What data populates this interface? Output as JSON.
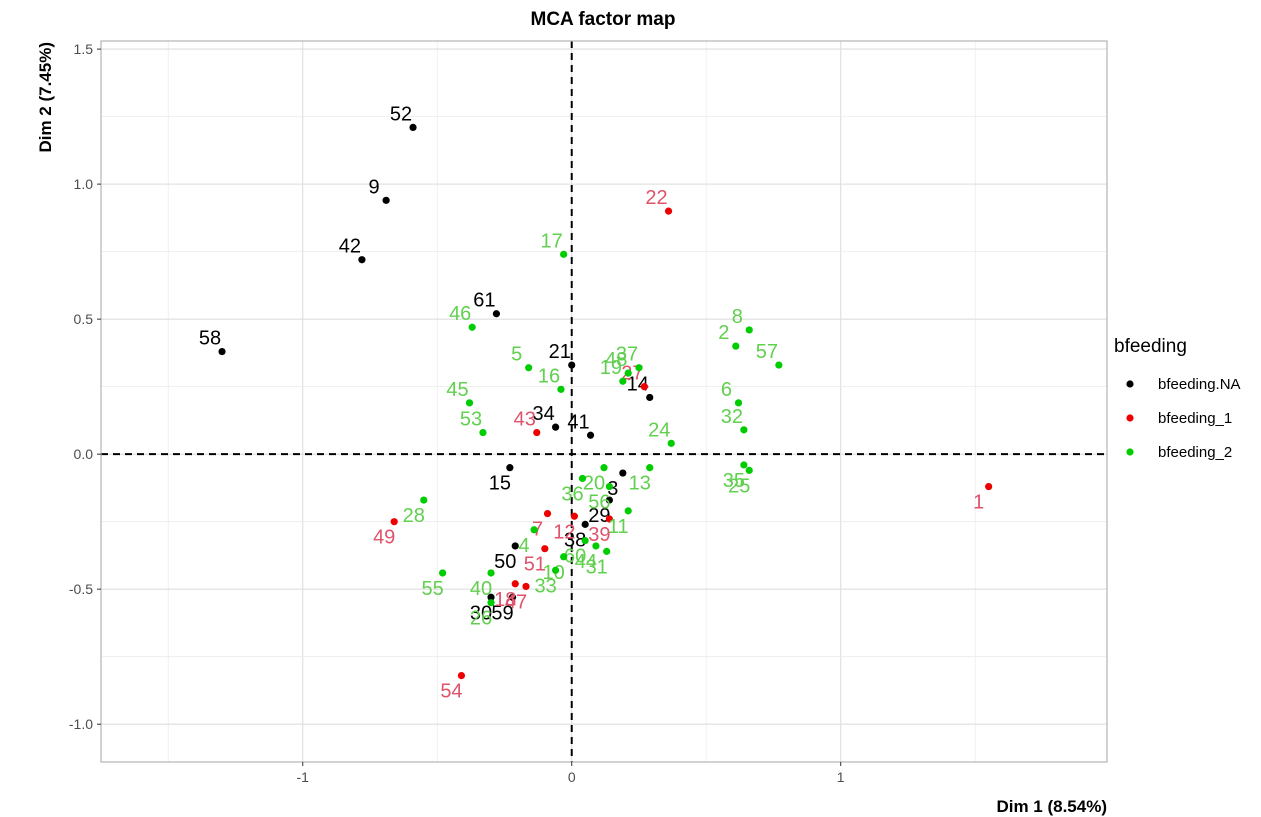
{
  "chart_data": {
    "type": "scatter",
    "title": "MCA factor map",
    "xlabel": "Dim 1 (8.54%)",
    "ylabel": "Dim 2 (7.45%)",
    "xlim": [
      -1.75,
      1.99
    ],
    "ylim": [
      -1.14,
      1.53
    ],
    "x_ticks": [
      {
        "value": -1,
        "label": "-1"
      },
      {
        "value": 0,
        "label": "0"
      },
      {
        "value": 1,
        "label": "1"
      }
    ],
    "y_ticks": [
      {
        "value": 1.5,
        "label": "1.5"
      },
      {
        "value": 1.0,
        "label": "1.0"
      },
      {
        "value": 0.5,
        "label": "0.5"
      },
      {
        "value": 0.0,
        "label": "0.0"
      },
      {
        "value": -0.5,
        "label": "-0.5"
      },
      {
        "value": -1.0,
        "label": "-1.0"
      }
    ],
    "grid": true,
    "reference_lines": {
      "x": 0,
      "y": 0,
      "style": "dashed"
    },
    "legend": {
      "title": "bfeeding",
      "placement": "right",
      "entries": [
        {
          "name": "bfeeding.NA",
          "marker_color": "#000000"
        },
        {
          "name": "bfeeding_1",
          "marker_color": "#ee0000"
        },
        {
          "name": "bfeeding_2",
          "marker_color": "#00cd00"
        }
      ]
    },
    "series": [
      {
        "name": "bfeeding.NA",
        "marker_color": "#000000",
        "label_color": "#000000",
        "points": [
          {
            "label": "52",
            "x": -0.59,
            "y": 1.21
          },
          {
            "label": "9",
            "x": -0.69,
            "y": 0.94
          },
          {
            "label": "42",
            "x": -0.78,
            "y": 0.72
          },
          {
            "label": "58",
            "x": -1.3,
            "y": 0.38
          },
          {
            "label": "61",
            "x": -0.28,
            "y": 0.52
          },
          {
            "label": "21",
            "x": 0.0,
            "y": 0.33
          },
          {
            "label": "14",
            "x": 0.29,
            "y": 0.21
          },
          {
            "label": "34",
            "x": -0.06,
            "y": 0.1
          },
          {
            "label": "41",
            "x": 0.07,
            "y": 0.07
          },
          {
            "label": "15",
            "x": -0.23,
            "y": -0.05
          },
          {
            "label": "3",
            "x": 0.19,
            "y": -0.07
          },
          {
            "label": "29",
            "x": 0.14,
            "y": -0.17
          },
          {
            "label": "38",
            "x": 0.05,
            "y": -0.26
          },
          {
            "label": "50",
            "x": -0.21,
            "y": -0.34
          },
          {
            "label": "30",
            "x": -0.3,
            "y": -0.53
          },
          {
            "label": "59",
            "x": -0.22,
            "y": -0.53
          }
        ]
      },
      {
        "name": "bfeeding_1",
        "marker_color": "#ee0000",
        "label_color": "#df536b",
        "points": [
          {
            "label": "22",
            "x": 0.36,
            "y": 0.9
          },
          {
            "label": "27",
            "x": 0.27,
            "y": 0.25
          },
          {
            "label": "43",
            "x": -0.13,
            "y": 0.08
          },
          {
            "label": "1",
            "x": 1.55,
            "y": -0.12
          },
          {
            "label": "7",
            "x": -0.09,
            "y": -0.22
          },
          {
            "label": "12",
            "x": 0.01,
            "y": -0.23
          },
          {
            "label": "39",
            "x": 0.14,
            "y": -0.24
          },
          {
            "label": "49",
            "x": -0.66,
            "y": -0.25
          },
          {
            "label": "51",
            "x": -0.1,
            "y": -0.35
          },
          {
            "label": "18",
            "x": -0.21,
            "y": -0.48
          },
          {
            "label": "47",
            "x": -0.17,
            "y": -0.49
          },
          {
            "label": "54",
            "x": -0.41,
            "y": -0.82
          }
        ]
      },
      {
        "name": "bfeeding_2",
        "marker_color": "#00cd00",
        "label_color": "#61d04f",
        "points": [
          {
            "label": "17",
            "x": -0.03,
            "y": 0.74
          },
          {
            "label": "46",
            "x": -0.37,
            "y": 0.47
          },
          {
            "label": "8",
            "x": 0.66,
            "y": 0.46
          },
          {
            "label": "2",
            "x": 0.61,
            "y": 0.4
          },
          {
            "label": "57",
            "x": 0.77,
            "y": 0.33
          },
          {
            "label": "5",
            "x": -0.16,
            "y": 0.32
          },
          {
            "label": "37",
            "x": 0.25,
            "y": 0.32
          },
          {
            "label": "48",
            "x": 0.21,
            "y": 0.3
          },
          {
            "label": "19",
            "x": 0.19,
            "y": 0.27
          },
          {
            "label": "16",
            "x": -0.04,
            "y": 0.24
          },
          {
            "label": "6",
            "x": 0.62,
            "y": 0.19
          },
          {
            "label": "45",
            "x": -0.38,
            "y": 0.19
          },
          {
            "label": "32",
            "x": 0.64,
            "y": 0.09
          },
          {
            "label": "53",
            "x": -0.33,
            "y": 0.08
          },
          {
            "label": "24",
            "x": 0.37,
            "y": 0.04
          },
          {
            "label": "20",
            "x": 0.12,
            "y": -0.05
          },
          {
            "label": "13",
            "x": 0.29,
            "y": -0.05
          },
          {
            "label": "35",
            "x": 0.64,
            "y": -0.04
          },
          {
            "label": "25",
            "x": 0.66,
            "y": -0.06
          },
          {
            "label": "36",
            "x": 0.04,
            "y": -0.09
          },
          {
            "label": "56",
            "x": 0.14,
            "y": -0.12
          },
          {
            "label": "11",
            "x": 0.21,
            "y": -0.21
          },
          {
            "label": "28",
            "x": -0.55,
            "y": -0.17
          },
          {
            "label": "4",
            "x": -0.14,
            "y": -0.28
          },
          {
            "label": "60",
            "x": 0.05,
            "y": -0.32
          },
          {
            "label": "44",
            "x": 0.09,
            "y": -0.34
          },
          {
            "label": "31",
            "x": 0.13,
            "y": -0.36
          },
          {
            "label": "10",
            "x": -0.03,
            "y": -0.38
          },
          {
            "label": "55",
            "x": -0.48,
            "y": -0.44
          },
          {
            "label": "40",
            "x": -0.3,
            "y": -0.44
          },
          {
            "label": "33",
            "x": -0.06,
            "y": -0.43
          },
          {
            "label": "26",
            "x": -0.3,
            "y": -0.55
          }
        ]
      }
    ]
  }
}
